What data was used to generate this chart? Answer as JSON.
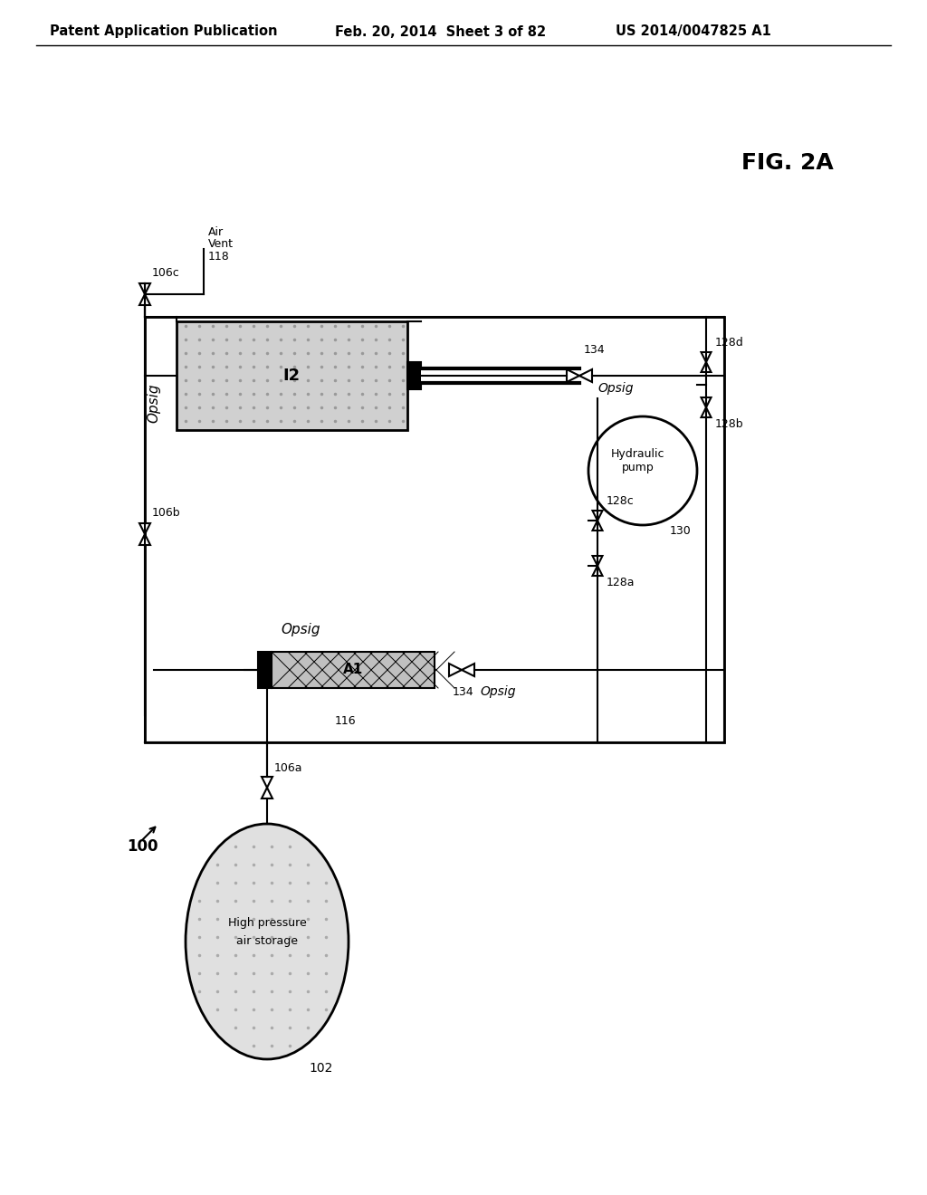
{
  "header_left": "Patent Application Publication",
  "header_mid": "Feb. 20, 2014  Sheet 3 of 82",
  "header_right": "US 2014/0047825 A1",
  "fig_label": "FIG. 2A",
  "diagram_number": "100",
  "background_color": "#ffffff",
  "line_color": "#000000"
}
